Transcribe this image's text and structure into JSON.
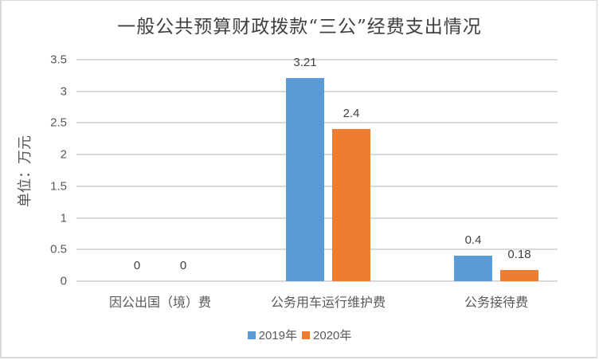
{
  "chart_data": {
    "type": "bar",
    "title": "一般公共预算财政拨款“三公”经费支出情况",
    "xlabel": "",
    "ylabel": "单位：万元",
    "ylim": [
      0,
      3.5
    ],
    "yticks": [
      "0",
      "0.5",
      "1",
      "1.5",
      "2",
      "2.5",
      "3",
      "3.5"
    ],
    "grid": true,
    "legend_position": "bottom",
    "categories": [
      "因公出国（境）费",
      "公务用车运行维护费",
      "公务接待费"
    ],
    "series": [
      {
        "name": "2019年",
        "color": "#5b9bd5",
        "values": [
          0,
          3.21,
          0.4
        ],
        "labels": [
          "0",
          "3.21",
          "0.4"
        ]
      },
      {
        "name": "2020年",
        "color": "#ed7d31",
        "values": [
          0,
          2.4,
          0.18
        ],
        "labels": [
          "0",
          "2.4",
          "0.18"
        ]
      }
    ]
  }
}
